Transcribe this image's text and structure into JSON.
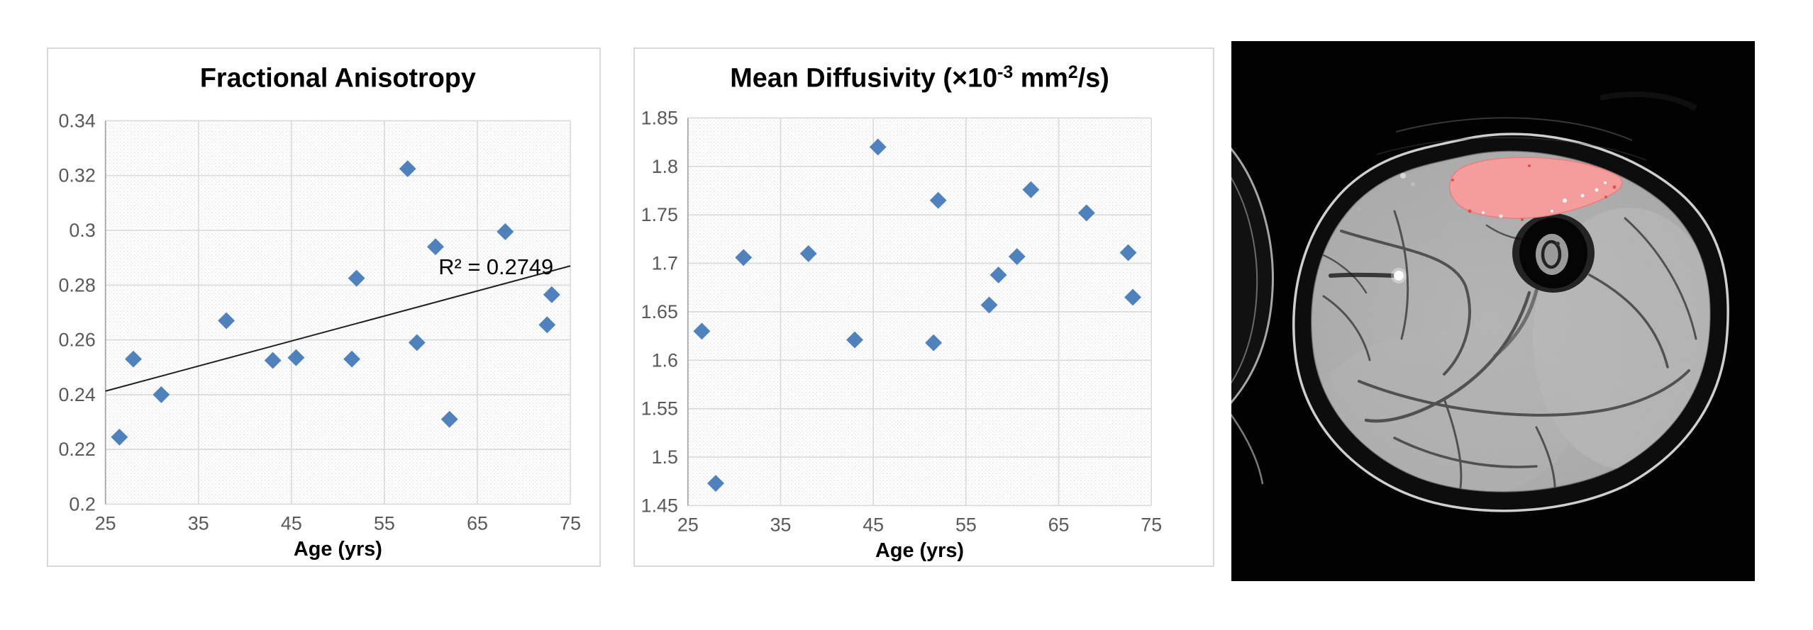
{
  "page": {
    "background": "#ffffff"
  },
  "colors": {
    "marker": "#4f81bd",
    "gridline": "#d9d9d9",
    "axis_line": "#a6a6a6",
    "tick_text": "#595959",
    "title_text": "#000000",
    "trendline": "#1f1f1f",
    "panel_border": "#d9d9d9",
    "hatch_line": "#dcdcdc"
  },
  "mri": {
    "highlight_color": "#f59c9c",
    "highlight_red_color": "#e2453a",
    "background_color": "#020202"
  },
  "chart_data": [
    {
      "type": "scatter",
      "title": "Fractional Anisotropy",
      "title_segments": [
        {
          "t": "Fractional Anisotropy"
        }
      ],
      "xlabel": "Age (yrs)",
      "xlim": [
        25,
        75
      ],
      "xticks": [
        25,
        35,
        45,
        55,
        65,
        75
      ],
      "xtick_labels": [
        "25",
        "35",
        "45",
        "55",
        "65",
        "75"
      ],
      "ylim": [
        0.2,
        0.34
      ],
      "yticks": [
        0.2,
        0.22,
        0.24,
        0.26,
        0.28,
        0.3,
        0.32,
        0.34
      ],
      "ytick_labels": [
        "0.2",
        "0.22",
        "0.24",
        "0.26",
        "0.28",
        "0.3",
        "0.32",
        "0.34"
      ],
      "grid": true,
      "legend": "none",
      "points": [
        [
          26.5,
          0.2245
        ],
        [
          28,
          0.253
        ],
        [
          31,
          0.24
        ],
        [
          38,
          0.267
        ],
        [
          43,
          0.2525
        ],
        [
          45.5,
          0.2535
        ],
        [
          51.5,
          0.253
        ],
        [
          52,
          0.2825
        ],
        [
          57.5,
          0.3225
        ],
        [
          58.5,
          0.259
        ],
        [
          60.5,
          0.294
        ],
        [
          62,
          0.231
        ],
        [
          68,
          0.2995
        ],
        [
          72.5,
          0.2655
        ],
        [
          73,
          0.2765
        ]
      ],
      "trendline": {
        "x1": 25,
        "y1": 0.2413,
        "x2": 75,
        "y2": 0.287
      },
      "annotation": {
        "text": "R² = 0.2749",
        "x": 67,
        "y": 0.2865
      }
    },
    {
      "type": "scatter",
      "title": "Mean Diffusivity (×10⁻³ mm²/s)",
      "title_segments": [
        {
          "t": "Mean Diffusivity (×10"
        },
        {
          "t": "-3",
          "sup": true
        },
        {
          "t": " mm"
        },
        {
          "t": "2",
          "sup": true
        },
        {
          "t": "/s)"
        }
      ],
      "xlabel": "Age (yrs)",
      "xlim": [
        25,
        75
      ],
      "xticks": [
        25,
        35,
        45,
        55,
        65,
        75
      ],
      "xtick_labels": [
        "25",
        "35",
        "45",
        "55",
        "65",
        "75"
      ],
      "ylim": [
        1.45,
        1.85
      ],
      "yticks": [
        1.45,
        1.5,
        1.55,
        1.6,
        1.65,
        1.7,
        1.75,
        1.8,
        1.85
      ],
      "ytick_labels": [
        "1.45",
        "1.5",
        "1.55",
        "1.6",
        "1.65",
        "1.7",
        "1.75",
        "1.8",
        "1.85"
      ],
      "grid": true,
      "legend": "none",
      "points": [
        [
          26.5,
          1.63
        ],
        [
          28,
          1.473
        ],
        [
          31,
          1.706
        ],
        [
          38,
          1.71
        ],
        [
          43,
          1.621
        ],
        [
          45.5,
          1.82
        ],
        [
          51.5,
          1.618
        ],
        [
          52,
          1.765
        ],
        [
          57.5,
          1.657
        ],
        [
          58.5,
          1.688
        ],
        [
          60.5,
          1.707
        ],
        [
          62,
          1.776
        ],
        [
          68,
          1.752
        ],
        [
          72.5,
          1.711
        ],
        [
          73,
          1.665
        ]
      ],
      "trendline": null,
      "annotation": null
    }
  ]
}
